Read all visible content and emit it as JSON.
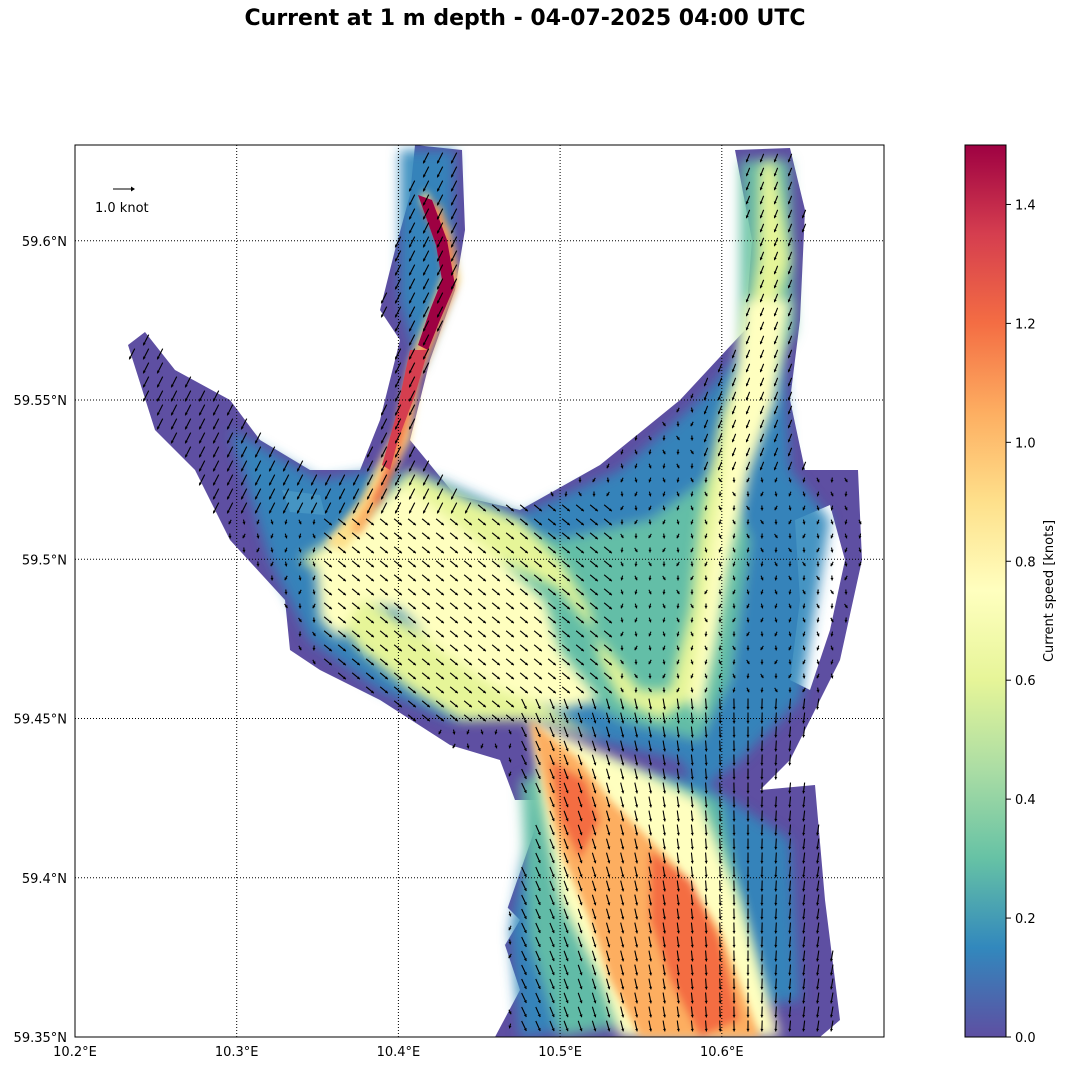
{
  "title": "Current at 1 m depth - 04-07-2025 04:00 UTC",
  "map": {
    "lon_range": [
      10.2,
      10.7
    ],
    "lat_range": [
      59.35,
      59.63
    ],
    "x_tick_labels": [
      "10.2°E",
      "10.3°E",
      "10.4°E",
      "10.5°E",
      "10.6°E"
    ],
    "y_tick_labels": [
      "59.35°N",
      "59.4°N",
      "59.45°N",
      "59.5°N",
      "59.55°N",
      "59.6°N"
    ],
    "gridlines": "dotted",
    "reference_arrow_label": "1.0 knot",
    "colormap": "Spectral_r"
  },
  "colorbar": {
    "label": "Current speed [knots]",
    "range": [
      0.0,
      1.5
    ],
    "tick_labels": [
      "0.0",
      "0.2",
      "0.4",
      "0.6",
      "0.8",
      "1.0",
      "1.2",
      "1.4"
    ],
    "colors": [
      "#5e4fa2",
      "#3288bd",
      "#66c2a5",
      "#abdda4",
      "#e6f598",
      "#ffffbf",
      "#fee08b",
      "#fdae61",
      "#f46d43",
      "#d53e4f",
      "#9e0142"
    ]
  }
}
